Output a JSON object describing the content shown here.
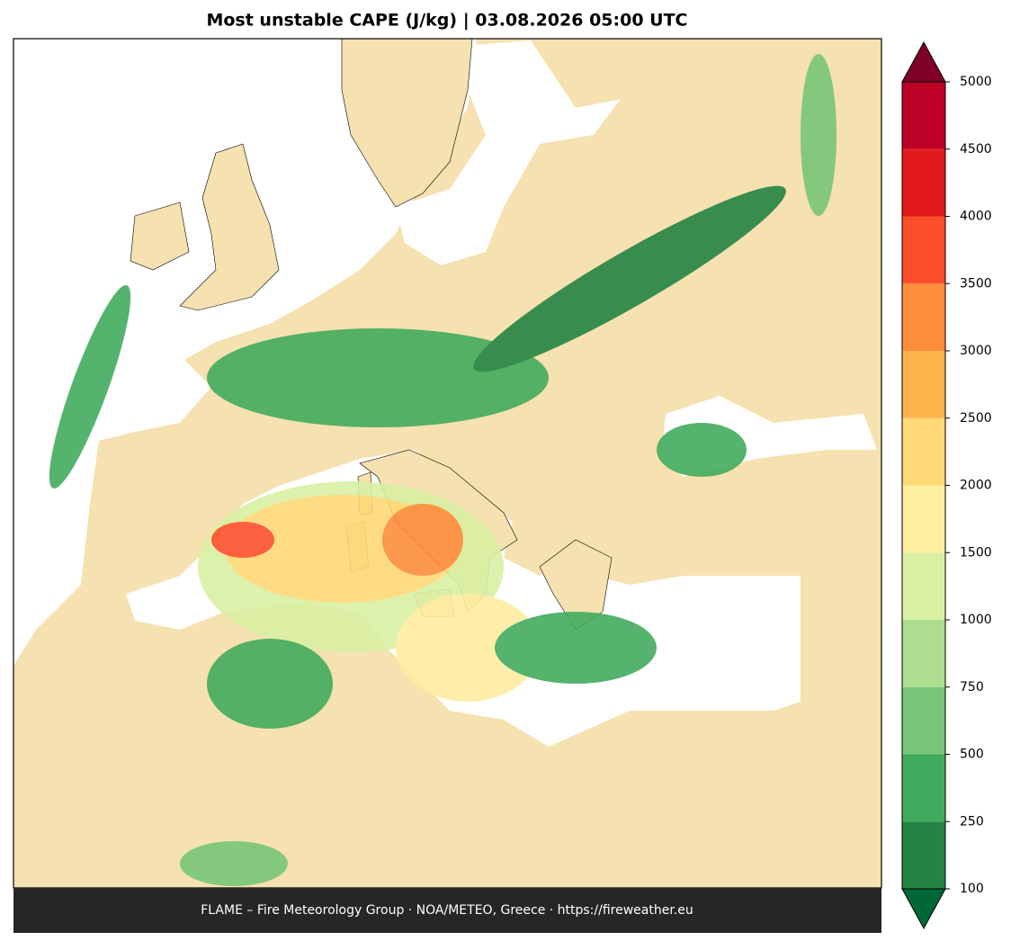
{
  "title": "Most unstable CAPE (J/kg)  |  03.08.2026 05:00 UTC",
  "footer": "FLAME – Fire Meteorology Group · NOA/METEO, Greece · https://fireweather.eu",
  "colorbar": {
    "ticks": [
      100,
      250,
      500,
      750,
      1000,
      1500,
      2000,
      2500,
      3000,
      3500,
      4000,
      4500,
      5000
    ],
    "colors": [
      "#238443",
      "#41ab5d",
      "#78c679",
      "#addd8e",
      "#d9f0a3",
      "#ffeda0",
      "#fed976",
      "#feb24c",
      "#fd8d3c",
      "#fc4e2a",
      "#e31a1c",
      "#bd0026"
    ],
    "under_color": "#006837",
    "over_color": "#800026"
  }
}
